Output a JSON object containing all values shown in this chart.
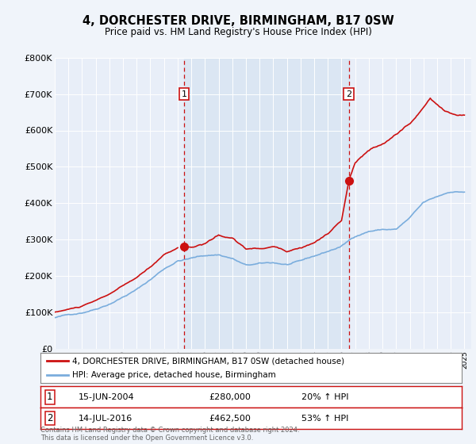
{
  "title": "4, DORCHESTER DRIVE, BIRMINGHAM, B17 0SW",
  "subtitle": "Price paid vs. HM Land Registry's House Price Index (HPI)",
  "bg_color": "#f0f4fa",
  "plot_bg_color": "#e8eef8",
  "legend_line1": "4, DORCHESTER DRIVE, BIRMINGHAM, B17 0SW (detached house)",
  "legend_line2": "HPI: Average price, detached house, Birmingham",
  "marker1_x": 2004.46,
  "marker1_price": 280000,
  "marker2_x": 2016.54,
  "marker2_price": 462500,
  "footer": "Contains HM Land Registry data © Crown copyright and database right 2024.\nThis data is licensed under the Open Government Licence v3.0.",
  "ylim": [
    0,
    800000
  ],
  "yticks": [
    0,
    100000,
    200000,
    300000,
    400000,
    500000,
    600000,
    700000,
    800000
  ],
  "ytick_labels": [
    "£0",
    "£100K",
    "£200K",
    "£300K",
    "£400K",
    "£500K",
    "£600K",
    "£700K",
    "£800K"
  ],
  "hpi_color": "#7aaddd",
  "price_color": "#cc1111",
  "shade_color": "#d0e0f0",
  "shade_alpha": 0.5,
  "xlim_start": 1995,
  "xlim_end": 2025.5
}
